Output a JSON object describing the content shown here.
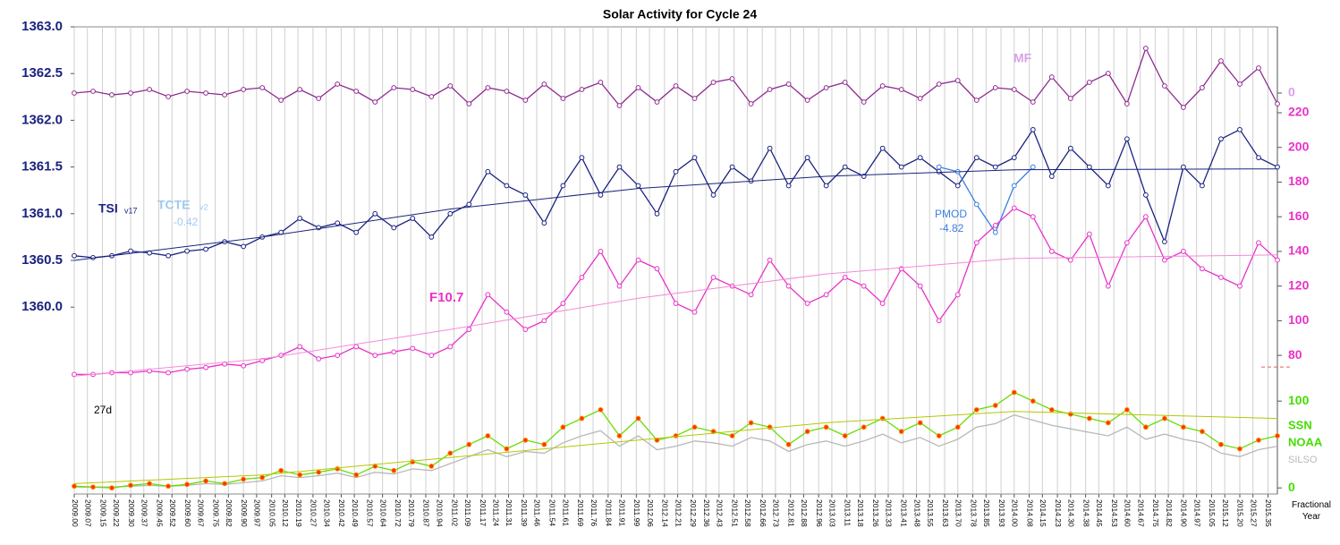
{
  "chart_data": {
    "type": "line",
    "title": "Solar Activity for Cycle 24",
    "x_label": "Fractional Year",
    "xlim": [
      2009.0,
      2015.4
    ],
    "xticks": [
      {
        "value": 2009.0,
        "label": "2009.00"
      },
      2009.07,
      2009.15,
      2009.22,
      {
        "value": 2009.3,
        "label": "2009.30"
      },
      2009.37,
      2009.45,
      2009.52,
      {
        "value": 2009.6,
        "label": "2009.60"
      },
      2009.67,
      2009.75,
      2009.82,
      {
        "value": 2009.9,
        "label": "2009.90"
      },
      2009.97,
      2010.05,
      2010.12,
      2010.19,
      2010.27,
      2010.34,
      2010.42,
      2010.49,
      2010.57,
      2010.64,
      2010.72,
      2010.79,
      2010.87,
      2010.94,
      2011.02,
      2011.09,
      2011.17,
      2011.24,
      2011.31,
      2011.39,
      2011.46,
      2011.54,
      2011.61,
      2011.69,
      2011.76,
      2011.84,
      2011.91,
      2011.99,
      2012.06,
      2012.14,
      2012.21,
      2012.29,
      2012.36,
      2012.43,
      2012.51,
      2012.58,
      2012.66,
      2012.73,
      2012.81,
      2012.88,
      2012.96,
      2013.03,
      2013.11,
      2013.18,
      2013.26,
      2013.33,
      2013.41,
      2013.48,
      2013.55,
      2013.63,
      {
        "value": 2013.7,
        "label": "2013.70"
      },
      2013.78,
      2013.85,
      2013.93,
      {
        "value": 2014.0,
        "label": "2014.00"
      },
      2014.08,
      2014.15,
      2014.23,
      {
        "value": 2014.3,
        "label": "2014.30"
      },
      2014.38,
      2014.45,
      2014.53,
      {
        "value": 2014.6,
        "label": "2014.60"
      },
      2014.67,
      2014.75,
      2014.82,
      {
        "value": 2014.9,
        "label": "2014.90"
      },
      2014.97,
      2015.05,
      2015.12,
      {
        "value": 2015.2,
        "label": "2015.20"
      },
      2015.27,
      2015.35
    ],
    "ylim": [
      1358.0,
      1363.0
    ],
    "yticks": [
      {
        "value": 1360.0,
        "label": "1360.0"
      },
      {
        "value": 1360.5,
        "label": "1360.5"
      },
      {
        "value": 1361.0,
        "label": "1361.0"
      },
      {
        "value": 1361.5,
        "label": "1361.5"
      },
      {
        "value": 1362.0,
        "label": "1362.0"
      },
      {
        "value": 1362.5,
        "label": "1362.5"
      },
      {
        "value": 1363.0,
        "label": "1363.0"
      }
    ],
    "y2lim": [
      0,
      269.6
    ],
    "y2ticks": [
      80,
      100,
      120,
      140,
      160,
      180,
      200,
      220
    ],
    "y3lim": [
      -7,
      531
    ],
    "y3ticks": [
      0,
      100
    ],
    "y4lim": [
      -22.4,
      3.7
    ],
    "y4ticks": [
      0
    ],
    "grid": true,
    "x": [
      2009.0,
      2009.1,
      2009.2,
      2009.3,
      2009.4,
      2009.5,
      2009.6,
      2009.7,
      2009.8,
      2009.9,
      2010.0,
      2010.1,
      2010.2,
      2010.3,
      2010.4,
      2010.5,
      2010.6,
      2010.7,
      2010.8,
      2010.9,
      2011.0,
      2011.1,
      2011.2,
      2011.3,
      2011.4,
      2011.5,
      2011.6,
      2011.7,
      2011.8,
      2011.9,
      2012.0,
      2012.1,
      2012.2,
      2012.3,
      2012.4,
      2012.5,
      2012.6,
      2012.7,
      2012.8,
      2012.9,
      2013.0,
      2013.1,
      2013.2,
      2013.3,
      2013.4,
      2013.5,
      2013.6,
      2013.7,
      2013.8,
      2013.9,
      2014.0,
      2014.1,
      2014.2,
      2014.3,
      2014.4,
      2014.5,
      2014.6,
      2014.7,
      2014.8,
      2014.9,
      2015.0,
      2015.1,
      2015.2,
      2015.3,
      2015.4
    ],
    "series": [
      {
        "name": "TSI",
        "color": "#1a237e",
        "axis": "y",
        "values": [
          1360.55,
          1360.53,
          1360.55,
          1360.6,
          1360.58,
          1360.55,
          1360.6,
          1360.62,
          1360.7,
          1360.65,
          1360.75,
          1360.8,
          1360.95,
          1360.85,
          1360.9,
          1360.8,
          1361.0,
          1360.85,
          1360.95,
          1360.75,
          1361.0,
          1361.1,
          1361.45,
          1361.3,
          1361.2,
          1360.9,
          1361.3,
          1361.6,
          1361.2,
          1361.5,
          1361.3,
          1361.0,
          1361.45,
          1361.6,
          1361.2,
          1361.5,
          1361.35,
          1361.7,
          1361.3,
          1361.6,
          1361.3,
          1361.5,
          1361.4,
          1361.7,
          1361.5,
          1361.6,
          1361.45,
          1361.3,
          1361.6,
          1361.5,
          1361.6,
          1361.9,
          1361.4,
          1361.7,
          1361.5,
          1361.3,
          1361.8,
          1361.2,
          1360.7,
          1361.5,
          1361.3,
          1361.8,
          1361.9,
          1361.6,
          1361.5
        ]
      },
      {
        "name": "PMOD",
        "color": "#3a7fe0",
        "axis": "y",
        "x": [
          2013.6,
          2013.7,
          2013.8,
          2013.9,
          2014.0,
          2014.1
        ],
        "values": [
          1361.5,
          1361.45,
          1361.1,
          1360.8,
          1361.3,
          1361.5
        ]
      },
      {
        "name": "F10.7",
        "color": "#e832c8",
        "axis": "y2",
        "values": [
          69,
          69,
          70,
          70,
          71,
          70,
          72,
          73,
          75,
          74,
          77,
          80,
          85,
          78,
          80,
          85,
          80,
          82,
          84,
          80,
          85,
          95,
          115,
          105,
          95,
          100,
          110,
          125,
          140,
          120,
          135,
          130,
          110,
          105,
          125,
          120,
          115,
          135,
          120,
          110,
          115,
          125,
          120,
          110,
          130,
          120,
          100,
          115,
          145,
          155,
          165,
          160,
          140,
          135,
          150,
          120,
          145,
          160,
          135,
          140,
          130,
          125,
          120,
          145,
          135
        ]
      },
      {
        "name": "MF",
        "color": "#8e2a8e",
        "axis": "y4",
        "values": [
          0,
          0.1,
          -0.1,
          0,
          0.2,
          -0.2,
          0.1,
          0,
          -0.1,
          0.2,
          0.3,
          -0.4,
          0.2,
          -0.3,
          0.5,
          0.1,
          -0.5,
          0.3,
          0.2,
          -0.2,
          0.4,
          -0.6,
          0.3,
          0.1,
          -0.4,
          0.5,
          -0.3,
          0.2,
          0.6,
          -0.7,
          0.3,
          -0.5,
          0.4,
          -0.3,
          0.6,
          0.8,
          -0.6,
          0.2,
          0.5,
          -0.4,
          0.3,
          0.6,
          -0.5,
          0.4,
          0.2,
          -0.3,
          0.5,
          0.7,
          -0.4,
          0.3,
          0.2,
          -0.5,
          0.9,
          -0.3,
          0.6,
          1.1,
          -0.6,
          2.5,
          0.4,
          -0.8,
          0.3,
          1.8,
          0.5,
          1.4,
          -0.6
        ]
      },
      {
        "name": "SILSO",
        "color": "#b8b8b8",
        "axis": "y3",
        "values": [
          1,
          1,
          1,
          2,
          3,
          2,
          3,
          5,
          4,
          6,
          8,
          14,
          12,
          14,
          17,
          12,
          18,
          16,
          22,
          20,
          28,
          36,
          44,
          36,
          42,
          40,
          52,
          60,
          66,
          48,
          60,
          44,
          48,
          54,
          52,
          48,
          58,
          54,
          42,
          50,
          54,
          48,
          54,
          62,
          52,
          58,
          48,
          56,
          70,
          74,
          84,
          78,
          72,
          68,
          64,
          60,
          70,
          56,
          62,
          56,
          52,
          40,
          36,
          44,
          48
        ]
      },
      {
        "name": "NOAA",
        "color": "#66dd00",
        "marker_color": "#ff3300",
        "axis": "y3",
        "values": [
          2,
          1,
          0,
          3,
          5,
          2,
          4,
          8,
          5,
          10,
          12,
          20,
          15,
          18,
          22,
          15,
          25,
          20,
          30,
          25,
          40,
          50,
          60,
          45,
          55,
          50,
          70,
          80,
          90,
          60,
          80,
          55,
          60,
          70,
          65,
          60,
          75,
          70,
          50,
          65,
          70,
          60,
          70,
          80,
          65,
          75,
          60,
          70,
          90,
          95,
          110,
          100,
          90,
          85,
          80,
          75,
          90,
          70,
          80,
          70,
          65,
          50,
          45,
          55,
          60
        ]
      },
      {
        "color": "#1a237e",
        "axis": "y",
        "x": [
          2009.0,
          2010.0,
          2011.0,
          2012.0,
          2013.0,
          2014.0,
          2015.4
        ],
        "values": [
          1360.5,
          1360.75,
          1361.05,
          1361.27,
          1361.4,
          1361.47,
          1361.48
        ]
      },
      {
        "color": "#f58ad8",
        "axis": "y2",
        "x": [
          2009.0,
          2010.0,
          2011.0,
          2012.0,
          2013.0,
          2014.0,
          2015.4
        ],
        "values": [
          68,
          78,
          95,
          113,
          127,
          136,
          138
        ]
      },
      {
        "color": "#b5c800",
        "axis": "y3",
        "x": [
          2009.0,
          2010.0,
          2011.0,
          2012.0,
          2013.0,
          2014.0,
          2015.4
        ],
        "values": [
          5,
          15,
          35,
          55,
          75,
          88,
          80
        ]
      }
    ],
    "annotations": [
      "v17",
      "TCTE",
      "v2",
      "-0.42",
      "-4.82",
      "27d",
      "SSN"
    ]
  }
}
